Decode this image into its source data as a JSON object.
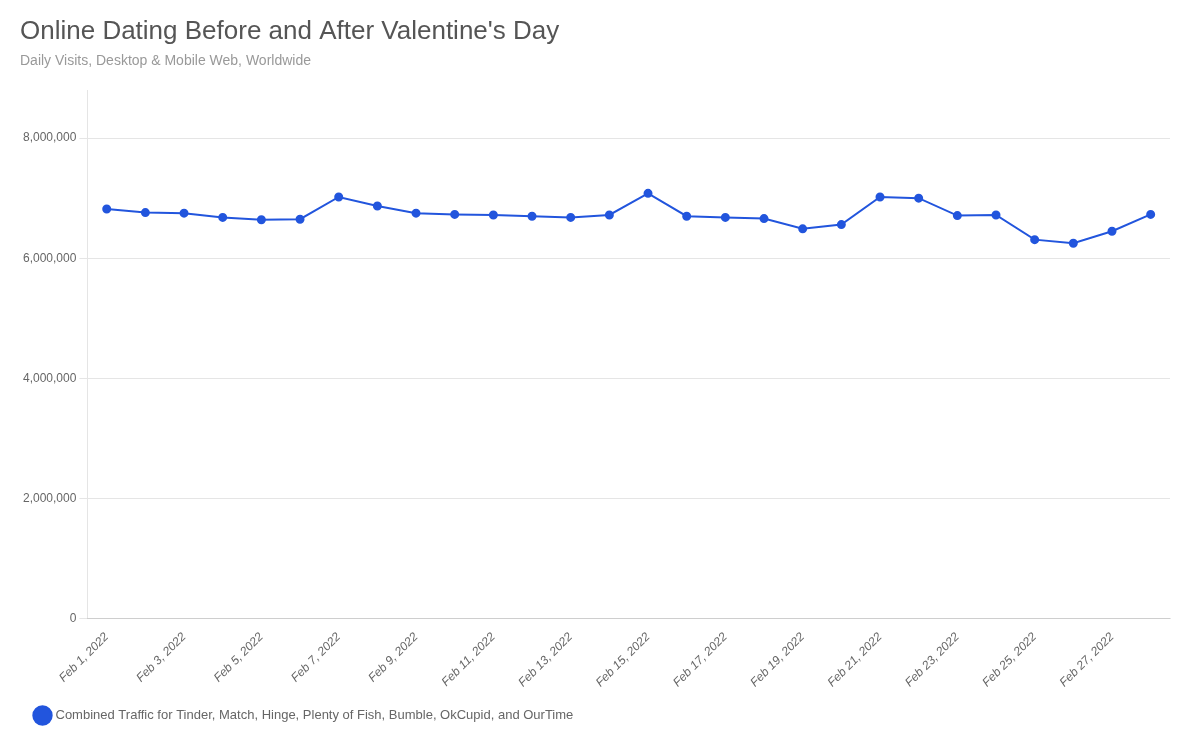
{
  "chart_data": {
    "type": "line",
    "title": "Online Dating Before and After Valentine's Day",
    "subtitle": "Daily Visits, Desktop & Mobile Web, Worldwide",
    "categories": [
      "Feb 1, 2022",
      null,
      "Feb 3, 2022",
      null,
      "Feb 5, 2022",
      null,
      "Feb 7, 2022",
      null,
      "Feb 9, 2022",
      null,
      "Feb 11, 2022",
      null,
      "Feb 13, 2022",
      null,
      "Feb 15, 2022",
      null,
      "Feb 17, 2022",
      null,
      "Feb 19, 2022",
      null,
      "Feb 21, 2022",
      null,
      "Feb 23, 2022",
      null,
      "Feb 25, 2022",
      null,
      "Feb 27, 2022",
      null
    ],
    "series": [
      {
        "name": "Combined Traffic for Tinder, Match, Hinge, Plenty of Fish, Bumble, OkCupid, and OurTime",
        "color": "#2255DD",
        "values": [
          6820000,
          6760000,
          6750000,
          6680000,
          6640000,
          6650000,
          7020000,
          6870000,
          6750000,
          6730000,
          6720000,
          6700000,
          6680000,
          6720000,
          7080000,
          6700000,
          6680000,
          6660000,
          6490000,
          6560000,
          7020000,
          7000000,
          6710000,
          6720000,
          6310000,
          6250000,
          6450000,
          6730000
        ]
      }
    ],
    "ylim": [
      0,
      8800000
    ],
    "yticks": [
      0,
      {
        "value": 2000000,
        "label": "2,000,000"
      },
      {
        "value": 4000000,
        "label": "4,000,000"
      },
      {
        "value": 6000000,
        "label": "6,000,000"
      },
      {
        "value": 8000000,
        "label": "8,000,000"
      }
    ],
    "grid": true,
    "legend": "bottom",
    "marker": "circle"
  }
}
